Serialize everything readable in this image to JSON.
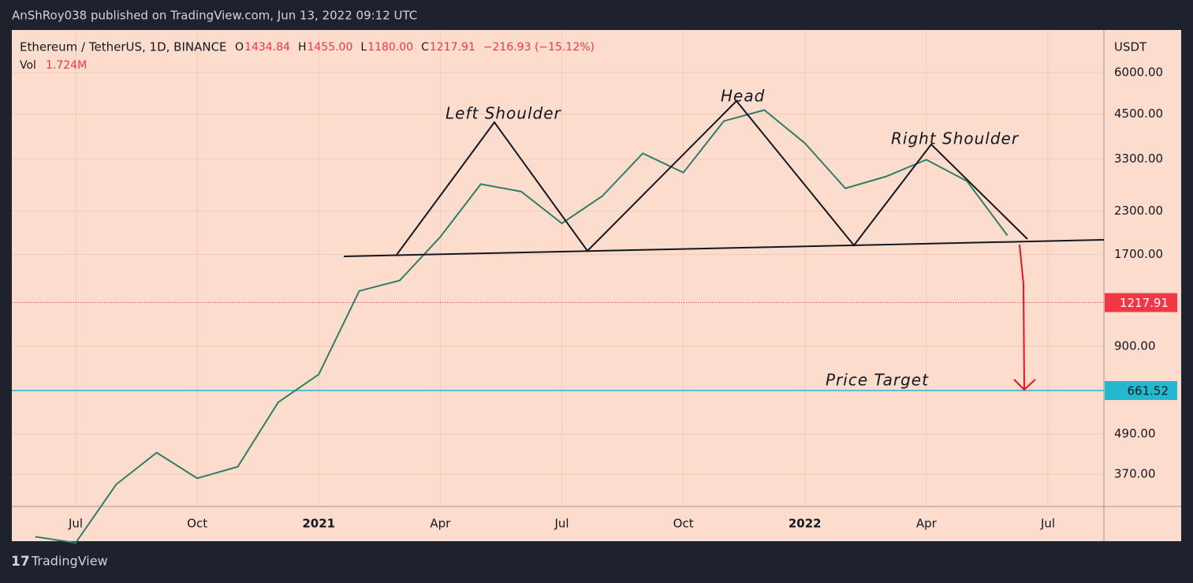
{
  "header": {
    "publisher": "AnShRoy038 published on TradingView.com, Jun 13, 2022 09:12 UTC",
    "brand": "TradingView"
  },
  "chart_data": {
    "type": "line",
    "symbol": "Ethereum / TetherUS, 1D, BINANCE",
    "ohlc": [
      {
        "label": "O",
        "value": "1434.84"
      },
      {
        "label": "H",
        "value": "1455.00"
      },
      {
        "label": "L",
        "value": "1180.00"
      },
      {
        "label": "C",
        "value": "1217.91"
      }
    ],
    "change": "−216.93 (−15.12%)",
    "volume_label": "Vol",
    "volume": "1.724M",
    "y_axis_label": "USDT",
    "log_scale": true,
    "x": [
      "2020-06",
      "2020-07",
      "2020-08",
      "2020-09",
      "2020-10",
      "2020-11",
      "2020-12",
      "2021-01",
      "2021-02",
      "2021-03",
      "2021-04",
      "2021-05",
      "2021-06",
      "2021-07",
      "2021-08",
      "2021-09",
      "2021-10",
      "2021-11",
      "2021-12",
      "2022-01",
      "2022-02",
      "2022-03",
      "2022-04",
      "2022-05",
      "2022-06"
    ],
    "series": [
      {
        "name": "ETHUSDT",
        "color": "#2e7d6b",
        "values": [
          240,
          230,
          345,
          430,
          360,
          390,
          610,
          740,
          1320,
          1420,
          1920,
          2770,
          2630,
          2110,
          2550,
          3430,
          3000,
          4290,
          4630,
          3680,
          2690,
          2920,
          3280,
          2830,
          1940
        ]
      }
    ],
    "ylim": [
      296,
      8070
    ],
    "yticks": [
      {
        "value": 370,
        "label": "370.00"
      },
      {
        "value": 490,
        "label": "490.00"
      },
      {
        "value": 900,
        "label": "900.00"
      },
      {
        "value": 1700,
        "label": "1700.00"
      },
      {
        "value": 2300,
        "label": "2300.00"
      },
      {
        "value": 3300,
        "label": "3300.00"
      },
      {
        "value": 4500,
        "label": "4500.00"
      },
      {
        "value": 6000,
        "label": "6000.00"
      }
    ],
    "xticks": [
      {
        "value": "2020-07",
        "label": "Jul"
      },
      {
        "value": "2020-10",
        "label": "Oct"
      },
      {
        "value": "2021-01",
        "label": "2021"
      },
      {
        "value": "2021-04",
        "label": "Apr"
      },
      {
        "value": "2021-07",
        "label": "Jul"
      },
      {
        "value": "2021-10",
        "label": "Oct"
      },
      {
        "value": "2022-01",
        "label": "2022"
      },
      {
        "value": "2022-04",
        "label": "Apr"
      },
      {
        "value": "2022-07",
        "label": "Jul"
      }
    ],
    "last_price": {
      "value": 1217.91,
      "label": "1217.91",
      "color": "#f23645"
    },
    "target_price": {
      "value": 661.52,
      "label": "661.52",
      "color": "#22b8cf"
    },
    "annotations": [
      "Left Shoulder",
      "Head",
      "Right Shoulder",
      "Price Target"
    ],
    "grid": true
  }
}
